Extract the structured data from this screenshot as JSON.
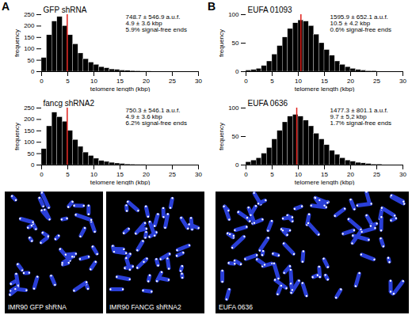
{
  "chart_data": [
    {
      "type": "histogram",
      "panel": "A",
      "title": "GFP shRNA",
      "annotations": [
        "748.7 ± 546.9 a.u.f.",
        "4.9 ± 3.6 kbp",
        "5.9% signal-free ends"
      ],
      "x_label": "telomere length (kbp)",
      "y_label": "frequency",
      "bins": [
        0,
        1,
        2,
        3,
        4,
        5,
        6,
        7,
        8,
        9,
        10,
        11,
        12,
        13,
        14,
        15,
        16,
        17,
        18,
        19,
        20,
        21,
        22,
        23,
        24,
        25,
        26,
        27,
        28,
        29,
        30
      ],
      "values": [
        60,
        160,
        220,
        240,
        200,
        160,
        120,
        80,
        55,
        40,
        30,
        20,
        15,
        10,
        8,
        5,
        4,
        3,
        2,
        1,
        1,
        0,
        0,
        0,
        0,
        0,
        0,
        0,
        0,
        0
      ],
      "color": "#000000",
      "mean_line": {
        "value": 4.9,
        "color": "#e0201b"
      },
      "xlim": [
        0,
        30
      ],
      "xticks": [
        0,
        5,
        10,
        15,
        20,
        25,
        30
      ],
      "ylim": [
        0,
        250
      ],
      "yticks": [
        0,
        50,
        100,
        150,
        200,
        250
      ],
      "grid": false
    },
    {
      "type": "histogram",
      "panel": "A",
      "title": "fancg shRNA2",
      "annotations": [
        "750.3 ± 546.1 a.u.f.",
        "4.9 ± 3.6 kbp",
        "6.2% signal-free ends"
      ],
      "x_label": "telomere length (kbp)",
      "y_label": "frequency",
      "bins": [
        0,
        1,
        2,
        3,
        4,
        5,
        6,
        7,
        8,
        9,
        10,
        11,
        12,
        13,
        14,
        15,
        16,
        17,
        18,
        19,
        20,
        21,
        22,
        23,
        24,
        25,
        26,
        27,
        28,
        29,
        30
      ],
      "values": [
        70,
        170,
        230,
        210,
        190,
        150,
        110,
        80,
        55,
        40,
        28,
        18,
        14,
        10,
        7,
        5,
        3,
        2,
        1,
        1,
        0,
        0,
        0,
        0,
        0,
        0,
        0,
        0,
        0,
        0
      ],
      "color": "#000000",
      "mean_line": {
        "value": 4.9,
        "color": "#e0201b"
      },
      "xlim": [
        0,
        30
      ],
      "xticks": [
        0,
        5,
        10,
        15,
        20,
        25,
        30
      ],
      "ylim": [
        0,
        250
      ],
      "yticks": [
        0,
        50,
        100,
        150,
        200,
        250
      ],
      "grid": false
    },
    {
      "type": "histogram",
      "panel": "B",
      "title": "EUFA 01093",
      "annotations": [
        "1595.9 ± 652.1 a.u.f.",
        "10.5 ± 4.2 kbp",
        "0.6% signal-free ends"
      ],
      "x_label": "telomere length (kbp)",
      "y_label": "frequency",
      "bins": [
        0,
        1,
        2,
        3,
        4,
        5,
        6,
        7,
        8,
        9,
        10,
        11,
        12,
        13,
        14,
        15,
        16,
        17,
        18,
        19,
        20,
        21,
        22,
        23,
        24,
        25,
        26,
        27,
        28,
        29,
        30
      ],
      "values": [
        2,
        3,
        5,
        10,
        18,
        30,
        45,
        60,
        75,
        85,
        90,
        88,
        80,
        65,
        50,
        38,
        28,
        18,
        12,
        8,
        5,
        3,
        2,
        1,
        1,
        0,
        0,
        0,
        0,
        0
      ],
      "color": "#000000",
      "mean_line": {
        "value": 10.5,
        "color": "#e0201b"
      },
      "xlim": [
        0,
        30
      ],
      "xticks": [
        0,
        5,
        10,
        15,
        20,
        25,
        30
      ],
      "ylim": [
        0,
        100
      ],
      "yticks": [
        0,
        50,
        100
      ],
      "grid": false
    },
    {
      "type": "histogram",
      "panel": "B",
      "title": "EUFA 0636",
      "annotations": [
        "1477.3 ± 801.1 a.u.f.",
        "9.7 ± 5,2 kbp",
        "1.7% signal-free ends"
      ],
      "x_label": "telomere length (kbp)",
      "y_label": "frequency",
      "bins": [
        0,
        1,
        2,
        3,
        4,
        5,
        6,
        7,
        8,
        9,
        10,
        11,
        12,
        13,
        14,
        15,
        16,
        17,
        18,
        19,
        20,
        21,
        22,
        23,
        24,
        25,
        26,
        27,
        28,
        29,
        30
      ],
      "values": [
        5,
        8,
        12,
        20,
        30,
        45,
        60,
        75,
        85,
        88,
        85,
        78,
        68,
        55,
        45,
        35,
        25,
        18,
        12,
        8,
        6,
        4,
        3,
        2,
        1,
        1,
        0,
        0,
        0,
        0
      ],
      "color": "#000000",
      "mean_line": {
        "value": 9.7,
        "color": "#e0201b"
      },
      "xlim": [
        0,
        30
      ],
      "xticks": [
        0,
        5,
        10,
        15,
        20,
        25,
        30
      ],
      "ylim": [
        0,
        100
      ],
      "yticks": [
        0,
        50,
        100
      ],
      "grid": false
    }
  ],
  "panel_labels": [
    "A",
    "B"
  ],
  "images": [
    {
      "panel": "A",
      "caption": "IMR90 GFP shRNA"
    },
    {
      "panel": "A",
      "caption": "IMR90 FANCG shRNA2"
    },
    {
      "panel": "B",
      "caption": "EUFA 0636"
    }
  ]
}
